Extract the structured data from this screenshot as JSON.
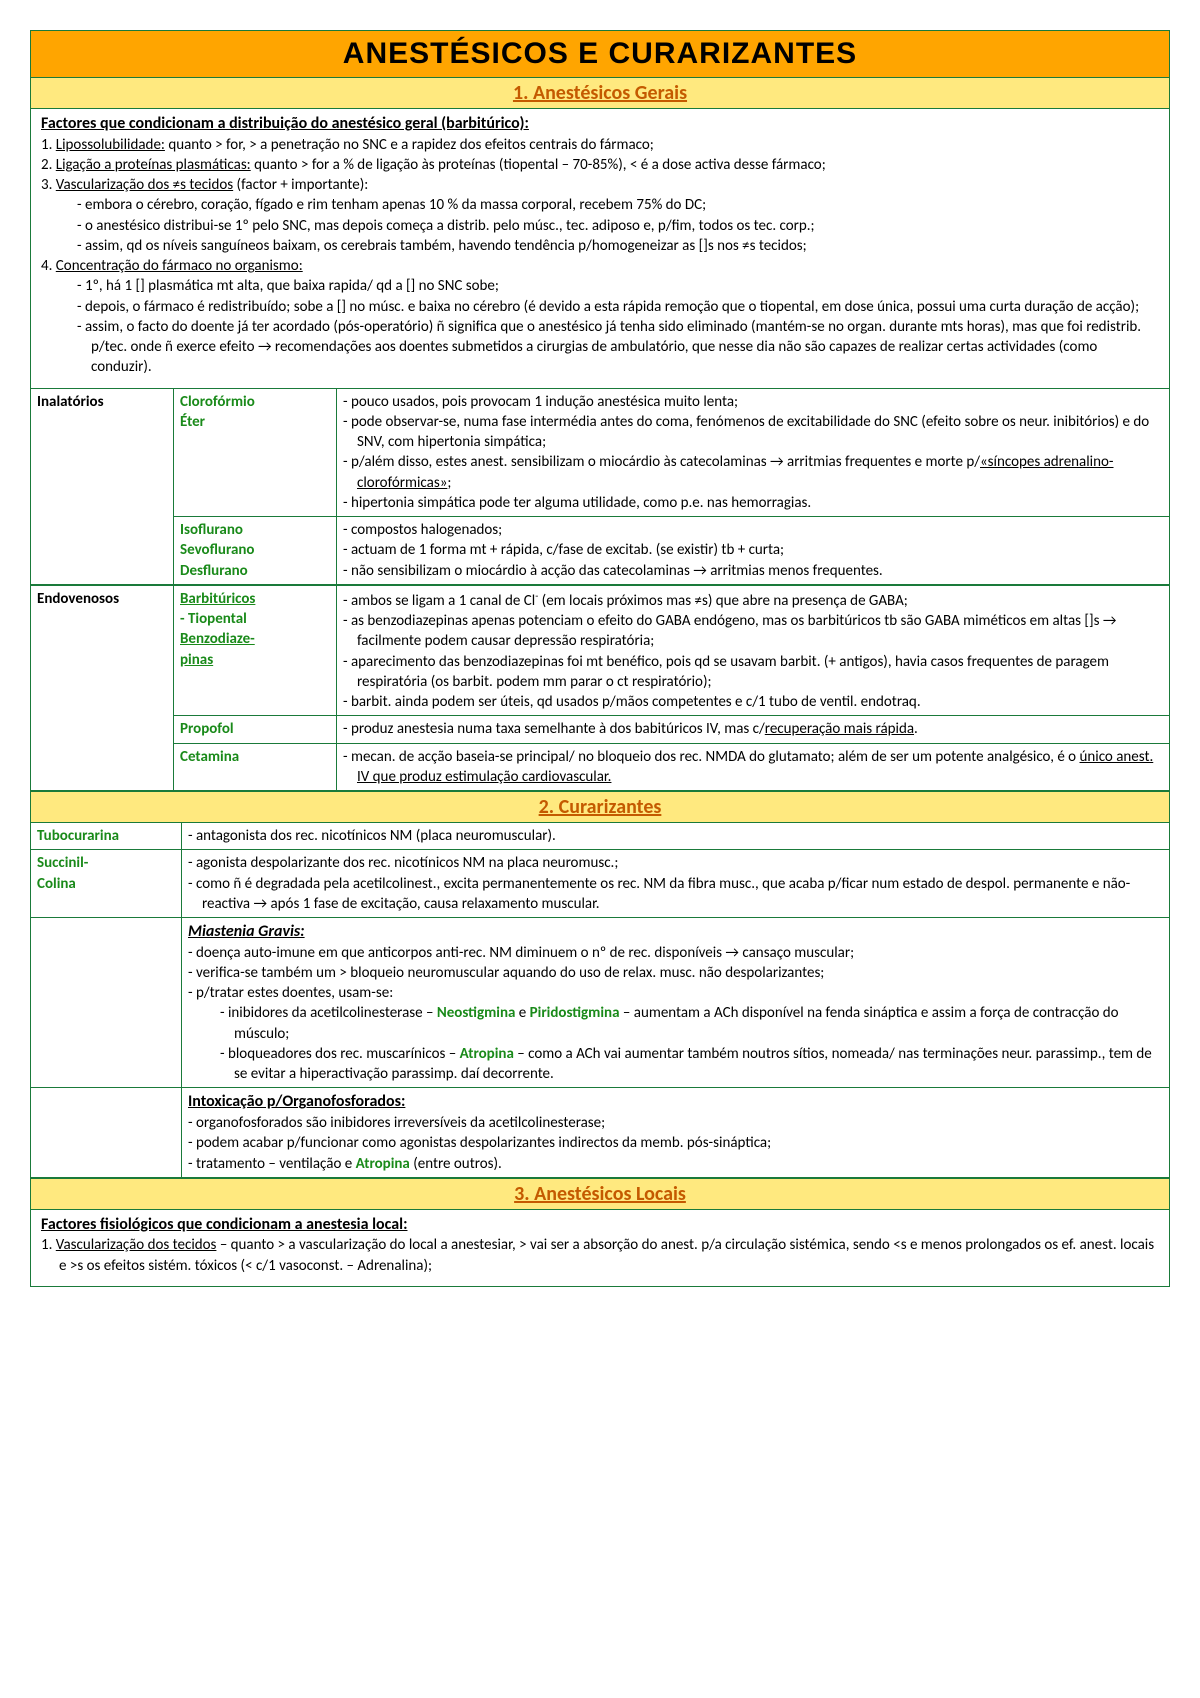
{
  "title": "ANESTÉSICOS E CURARIZANTES",
  "colors": {
    "title_bg": "#ffa500",
    "section_bg": "#ffe97f",
    "section_fg": "#c45a00",
    "border": "#1a7a3a",
    "drug_green": "#1a8a1a"
  },
  "sections": {
    "s1": {
      "title": "1. Anestésicos Gerais"
    },
    "s2": {
      "title": "2. Curarizantes"
    },
    "s3": {
      "title": "3. Anestésicos Locais"
    }
  },
  "factors_general": {
    "heading": "Factores que condicionam a distribuição do anestésico geral (barbitúrico):",
    "n1_label": "1. ",
    "n1_under": "Lipossolubilidade:",
    "n1_rest": " quanto > for, > a penetração no SNC e a rapidez dos efeitos centrais do fármaco;",
    "n2_label": "2. ",
    "n2_under": "Ligação a proteínas plasmáticas:",
    "n2_rest": " quanto > for a % de ligação às proteínas (tiopental – 70-85%), < é a dose activa desse fármaco;",
    "n3_label": "3. ",
    "n3_under": "Vascularização dos ≠s tecidos",
    "n3_rest": " (factor + importante):",
    "n3_b1": "- embora o cérebro, coração, fígado e rim tenham apenas 10 % da massa corporal, recebem 75% do DC;",
    "n3_b2": "- o anestésico distribui-se 1º pelo SNC, mas depois começa a distrib. pelo músc., tec. adiposo e, p/fim, todos os tec. corp.;",
    "n3_b3": "- assim, qd os níveis sanguíneos baixam, os cerebrais também, havendo tendência p/homogeneizar as []s nos ≠s tecidos;",
    "n4_label": "4. ",
    "n4_under": "Concentração do fármaco no organismo:",
    "n4_b1": "- 1º, há 1 [] plasmática mt alta, que baixa rapida/ qd a [] no SNC sobe;",
    "n4_b2": "- depois, o fármaco é redistribuído; sobe a [] no músc. e baixa no cérebro (é devido a esta rápida remoção que o tiopental, em dose única, possui uma curta duração de acção);",
    "n4_b3": "- assim, o facto do doente já ter acordado (pós-operatório) ñ significa que o anestésico já tenha sido eliminado (mantém-se no organ. durante mts horas), mas que foi redistrib. p/tec. onde ñ exerce efeito → recomendações aos doentes submetidos a cirurgias de ambulatório, que nesse dia não são capazes de realizar certas actividades (como conduzir)."
  },
  "inhalation_table": {
    "cat": "Inalatórios",
    "r1_drugs": "Clorofórmio\nÉter",
    "r1_b1": "- pouco usados, pois provocam 1 indução anestésica muito lenta;",
    "r1_b2": "- pode observar-se, numa fase intermédia antes do coma, fenómenos de excitabilidade do SNC (efeito sobre os neur. inibitórios) e do SNV, com hipertonia simpática;",
    "r1_b3a": "- p/além disso, estes anest. sensibilizam o miocárdio às catecolaminas → arritmias frequentes e morte p/",
    "r1_b3_under": "«síncopes adrenalino-clorofórmicas»",
    "r1_b3b": ";",
    "r1_b4": "- hipertonia simpática pode ter alguma utilidade, como p.e. nas hemorragias.",
    "r2_drugs": "Isoflurano\nSevoflurano\nDesflurano",
    "r2_b1": "- compostos halogenados;",
    "r2_b2": "- actuam de 1 forma mt + rápida, c/fase de excitab. (se existir) tb + curta;",
    "r2_b3": "- não sensibilizam o miocárdio à acção das catecolaminas → arritmias menos frequentes."
  },
  "iv_table": {
    "cat": "Endovenosos",
    "r1_drug_html": "<span style=\"text-decoration:underline\">Barbitúricos</span><br>- Tiopental<br><span style=\"text-decoration:underline\">Benzodiaze-<br>pinas</span>",
    "r1_b1a": "- ambos se ligam a 1 canal de Cl",
    "r1_b1b": " (em locais próximos mas ≠s) que abre na presença de GABA;",
    "r1_b2": "- as benzodiazepinas apenas potenciam o efeito do GABA endógeno, mas os barbitúricos tb são GABA miméticos em altas []s → facilmente podem causar depressão respiratória;",
    "r1_b3": "- aparecimento das benzodiazepinas foi mt benéfico, pois qd se usavam barbit. (+ antigos), havia casos frequentes de paragem respiratória (os barbit. podem mm parar o ct respiratório);",
    "r1_b4": "- barbit. ainda podem ser úteis, qd usados p/mãos competentes e c/1 tubo de ventil. endotraq.",
    "r2_drug": "Propofol",
    "r2_b1a": "- produz anestesia numa taxa semelhante à dos babitúricos IV, mas c/",
    "r2_b1_under": "recuperação mais rápida",
    "r2_b1b": ".",
    "r3_drug": "Cetamina",
    "r3_b1a": "- mecan. de acção baseia-se principal/ no bloqueio dos rec. NMDA do glutamato; além de ser um potente analgésico, é o ",
    "r3_b1_under": "único anest. IV que produz estimulação cardiovascular.",
    "r3_b1b": ""
  },
  "curarizantes": {
    "r1_drug": "Tubocurarina",
    "r1_txt": "- antagonista dos rec. nicotínicos NM (placa neuromuscular).",
    "r2_drug": "Succinil-\nColina",
    "r2_b1": "- agonista despolarizante dos rec. nicotínicos NM na placa neuromusc.;",
    "r2_b2": "- como ñ é degradada pela acetilcolinest., excita permanentemente os rec. NM da fibra musc., que acaba p/ficar num estado de despol. permanente e não-reactiva → após 1 fase de excitação, causa relaxamento muscular.",
    "mg_title": "Miastenia Gravis:",
    "mg_b1": "- doença auto-imune em que anticorpos anti-rec. NM diminuem o nº de rec. disponíveis → cansaço muscular;",
    "mg_b2": "- verifica-se também um > bloqueio neuromuscular aquando do uso de relax. musc. não despolarizantes;",
    "mg_b3": "- p/tratar estes doentes, usam-se:",
    "mg_s1a": "- inibidores da acetilcolinesterase – ",
    "mg_s1_drug1": "Neostigmina",
    "mg_s1_mid": " e ",
    "mg_s1_drug2": "Piridostigmina",
    "mg_s1b": " – aumentam a ACh disponível na fenda sináptica e assim a força de contracção do músculo;",
    "mg_s2a": "- bloqueadores dos rec. muscarínicos – ",
    "mg_s2_drug": "Atropina",
    "mg_s2b": " – como a ACh vai aumentar também noutros sítios, nomeada/ nas terminações neur. parassimp., tem de se evitar a hiperactivação parassimp. daí decorrente.",
    "org_title": "Intoxicação p/Organofosforados:",
    "org_b1": "- organofosforados são inibidores irreversíveis da acetilcolinesterase;",
    "org_b2": "- podem acabar p/funcionar como agonistas despolarizantes indirectos da memb. pós-sináptica;",
    "org_b3a": "- tratamento – ventilação e ",
    "org_b3_drug": "Atropina",
    "org_b3b": " (entre outros)."
  },
  "local": {
    "heading": "Factores fisiológicos que condicionam a anestesia local:",
    "n1_label": "1. ",
    "n1_under": "Vascularização dos tecidos",
    "n1_rest": " – quanto > a vascularização do local a anestesiar, > vai ser a absorção do anest. p/a circulação sistémica, sendo <s e menos prolongados os ef. anest. locais e >s os efeitos sistém. tóxicos (< c/1 vasoconst. – Adrenalina);"
  }
}
